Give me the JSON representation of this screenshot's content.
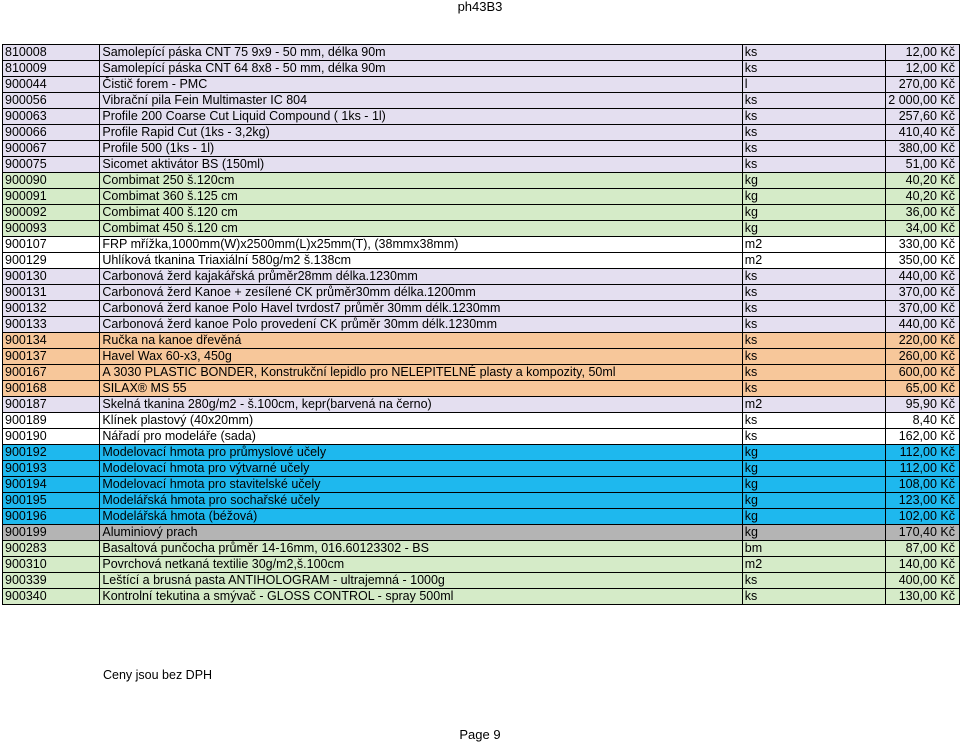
{
  "header": {
    "title": "ph43B3"
  },
  "rows": [
    {
      "code": "810008",
      "name": "Samolepící páska CNT 75 9x9 - 50 mm, délka 90m",
      "unit": "ks",
      "price": "12,00 Kč",
      "bg": "lav"
    },
    {
      "code": "810009",
      "name": "Samolepící páska CNT 64 8x8 - 50 mm, délka 90m",
      "unit": "ks",
      "price": "12,00 Kč",
      "bg": "lav"
    },
    {
      "code": "900044",
      "name": "Čistič forem - PMC",
      "unit": "l",
      "price": "270,00 Kč",
      "bg": "lav"
    },
    {
      "code": "900056",
      "name": "Vibrační pila Fein Multimaster IC 804",
      "unit": "ks",
      "price": "2 000,00 Kč",
      "bg": "lav"
    },
    {
      "code": "900063",
      "name": "Profile 200 Coarse Cut Liquid Compound ( 1ks - 1l)",
      "unit": "ks",
      "price": "257,60 Kč",
      "bg": "lav"
    },
    {
      "code": "900066",
      "name": "Profile Rapid Cut (1ks - 3,2kg)",
      "unit": "ks",
      "price": "410,40 Kč",
      "bg": "lav"
    },
    {
      "code": "900067",
      "name": "Profile 500 (1ks - 1l)",
      "unit": "ks",
      "price": "380,00 Kč",
      "bg": "lav"
    },
    {
      "code": "900075",
      "name": "Sicomet aktivátor BS (150ml)",
      "unit": "ks",
      "price": "51,00 Kč",
      "bg": "lav"
    },
    {
      "code": "900090",
      "name": "Combimat 250 š.120cm",
      "unit": "kg",
      "price": "40,20 Kč",
      "bg": "green"
    },
    {
      "code": "900091",
      "name": "Combimat 360 š.125 cm",
      "unit": "kg",
      "price": "40,20 Kč",
      "bg": "green"
    },
    {
      "code": "900092",
      "name": "Combimat 400 š.120 cm",
      "unit": "kg",
      "price": "36,00 Kč",
      "bg": "green"
    },
    {
      "code": "900093",
      "name": "Combimat 450 š.120 cm",
      "unit": "kg",
      "price": "34,00 Kč",
      "bg": "green"
    },
    {
      "code": "900107",
      "name": "FRP mřížka,1000mm(W)x2500mm(L)x25mm(T), (38mmx38mm)",
      "unit": "m2",
      "price": "330,00 Kč",
      "bg": "white"
    },
    {
      "code": "900129",
      "name": "Uhlíková tkanina Triaxiální 580g/m2 š.138cm",
      "unit": "m2",
      "price": "350,00 Kč",
      "bg": "white"
    },
    {
      "code": "900130",
      "name": "Carbonová žerd kajakářská průměr28mm délka.1230mm",
      "unit": "ks",
      "price": "440,00 Kč",
      "bg": "lav"
    },
    {
      "code": "900131",
      "name": "Carbonová žerd Kanoe + zesílené CK průměr30mm délka.1200mm",
      "unit": "ks",
      "price": "370,00 Kč",
      "bg": "lav"
    },
    {
      "code": "900132",
      "name": "Carbonová žerd kanoe Polo Havel tvrdost7 průměr 30mm délk.1230mm",
      "unit": "ks",
      "price": "370,00 Kč",
      "bg": "lav"
    },
    {
      "code": "900133",
      "name": "Carbonová žerd kanoe Polo provedení CK průměr 30mm délk.1230mm",
      "unit": "ks",
      "price": "440,00 Kč",
      "bg": "lav"
    },
    {
      "code": "900134",
      "name": "Ručka na kanoe dřevěná",
      "unit": "ks",
      "price": "220,00 Kč",
      "bg": "orange"
    },
    {
      "code": "900137",
      "name": "Havel Wax 60-x3,   450g",
      "unit": "ks",
      "price": "260,00 Kč",
      "bg": "orange"
    },
    {
      "code": "900167",
      "name": "A 3030 PLASTIC BONDER, Konstrukční lepidlo pro NELEPITELNÉ plasty a kompozity, 50ml",
      "unit": "ks",
      "price": "600,00 Kč",
      "bg": "orange"
    },
    {
      "code": "900168",
      "name": "SILAX® MS 55",
      "unit": "ks",
      "price": "65,00 Kč",
      "bg": "orange"
    },
    {
      "code": "900187",
      "name": "Skelná tkanina 280g/m2 - š.100cm, kepr(barvená na černo)",
      "unit": "m2",
      "price": "95,90 Kč",
      "bg": "lav"
    },
    {
      "code": "900189",
      "name": "Klínek plastový (40x20mm)",
      "unit": "ks",
      "price": "8,40 Kč",
      "bg": "white"
    },
    {
      "code": "900190",
      "name": "Nářadí pro modeláře (sada)",
      "unit": "ks",
      "price": "162,00 Kč",
      "bg": "white"
    },
    {
      "code": "900192",
      "name": "Modelovací hmota pro průmyslové učely",
      "unit": "kg",
      "price": "112,00 Kč",
      "bg": "cyan"
    },
    {
      "code": "900193",
      "name": "Modelovací hmota pro výtvarné učely",
      "unit": "kg",
      "price": "112,00 Kč",
      "bg": "cyan"
    },
    {
      "code": "900194",
      "name": "Modelovací hmota pro stavitelské učely",
      "unit": "kg",
      "price": "108,00 Kč",
      "bg": "cyan"
    },
    {
      "code": "900195",
      "name": "Modelářská hmota pro sochařské učely",
      "unit": "kg",
      "price": "123,00 Kč",
      "bg": "cyan"
    },
    {
      "code": "900196",
      "name": "Modelářská hmota (béžová)",
      "unit": "kg",
      "price": "102,00 Kč",
      "bg": "cyan"
    },
    {
      "code": "900199",
      "name": "Aluminiový prach",
      "unit": "kg",
      "price": "170,40 Kč",
      "bg": "gray"
    },
    {
      "code": "900283",
      "name": "Basaltová punčocha průměr 14-16mm, 016.60123302 - BS",
      "unit": "bm",
      "price": "87,00 Kč",
      "bg": "green"
    },
    {
      "code": "900310",
      "name": "Povrchová netkaná textilie 30g/m2,š.100cm",
      "unit": "m2",
      "price": "140,00 Kč",
      "bg": "green"
    },
    {
      "code": "900339",
      "name": "Leštící a brusná pasta ANTIHOLOGRAM - ultrajemná - 1000g",
      "unit": "ks",
      "price": "400,00 Kč",
      "bg": "green"
    },
    {
      "code": "900340",
      "name": "Kontrolní tekutina a smývač - GLOSS CONTROL - spray 500ml",
      "unit": "ks",
      "price": "130,00 Kč",
      "bg": "green"
    }
  ],
  "note": "Ceny jsou bez DPH",
  "footer": {
    "page": "Page 9"
  },
  "colors": {
    "lav": "#e4dff0",
    "green": "#d5ebc8",
    "white": "#ffffff",
    "orange": "#f7c79a",
    "cyan": "#1eb8ee",
    "gray": "#b4b4b4"
  }
}
